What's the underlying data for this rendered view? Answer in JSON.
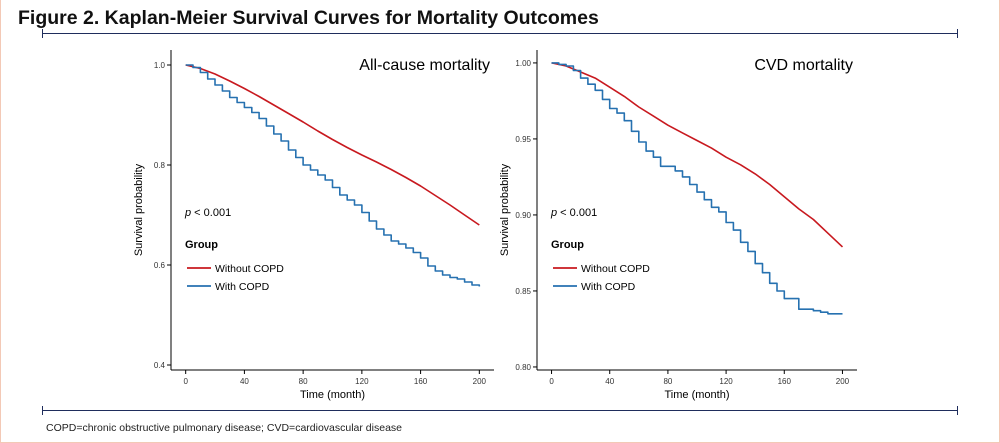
{
  "figure": {
    "title": "Figure 2. Kaplan-Meier Survival Curves for Mortality Outcomes",
    "footnote": "COPD=chronic obstructive pulmonary disease; CVD=cardiovascular disease"
  },
  "colors": {
    "without_copd": "#c8191f",
    "with_copd": "#2671b0",
    "rule": "#1f2d5c"
  },
  "chart_data": [
    {
      "type": "line",
      "title": "All-cause mortality",
      "xlabel": "Time (month)",
      "ylabel": "Survival probability",
      "xlim": [
        -10,
        210
      ],
      "ylim": [
        0.39,
        1.03
      ],
      "xticks": [
        0,
        40,
        80,
        120,
        160,
        200
      ],
      "yticks": [
        0.4,
        0.6,
        0.8,
        1.0
      ],
      "ytick_labels": [
        "0.4",
        "0.6",
        "0.8",
        "1.0"
      ],
      "annotation": "< 0.001",
      "annotation_italic": "p",
      "legend_title": "Group",
      "legend_position": "left",
      "grid": false,
      "series": [
        {
          "name": "Without COPD",
          "color": "#c8191f",
          "step": false,
          "x": [
            0,
            10,
            20,
            30,
            40,
            50,
            60,
            70,
            80,
            90,
            100,
            110,
            120,
            130,
            140,
            150,
            160,
            170,
            180,
            190,
            200
          ],
          "y": [
            1.0,
            0.993,
            0.982,
            0.968,
            0.953,
            0.937,
            0.92,
            0.903,
            0.886,
            0.868,
            0.851,
            0.835,
            0.82,
            0.806,
            0.791,
            0.775,
            0.758,
            0.739,
            0.72,
            0.7,
            0.68
          ]
        },
        {
          "name": "With COPD",
          "color": "#2671b0",
          "step": true,
          "x": [
            0,
            5,
            10,
            15,
            20,
            25,
            30,
            35,
            40,
            45,
            50,
            55,
            60,
            65,
            70,
            75,
            80,
            85,
            90,
            95,
            100,
            105,
            110,
            115,
            120,
            125,
            130,
            135,
            140,
            145,
            150,
            155,
            160,
            165,
            170,
            175,
            180,
            185,
            190,
            195,
            200
          ],
          "y": [
            1.0,
            0.995,
            0.985,
            0.972,
            0.96,
            0.948,
            0.935,
            0.925,
            0.915,
            0.905,
            0.893,
            0.878,
            0.862,
            0.848,
            0.83,
            0.815,
            0.8,
            0.79,
            0.78,
            0.77,
            0.755,
            0.74,
            0.73,
            0.72,
            0.705,
            0.688,
            0.672,
            0.66,
            0.648,
            0.642,
            0.634,
            0.625,
            0.614,
            0.598,
            0.588,
            0.58,
            0.575,
            0.572,
            0.566,
            0.56,
            0.557
          ]
        }
      ]
    },
    {
      "type": "line",
      "title": "CVD mortality",
      "xlabel": "Time (month)",
      "ylabel": "Survival probability",
      "xlim": [
        -10,
        210
      ],
      "ylim": [
        0.798,
        1.0085
      ],
      "xticks": [
        0,
        40,
        80,
        120,
        160,
        200
      ],
      "yticks": [
        0.8,
        0.85,
        0.9,
        0.95,
        1.0
      ],
      "ytick_labels": [
        "0.80",
        "0.85",
        "0.90",
        "0.95",
        "1.00"
      ],
      "annotation": "< 0.001",
      "annotation_italic": "p",
      "legend_title": "Group",
      "legend_position": "left",
      "grid": false,
      "series": [
        {
          "name": "Without COPD",
          "color": "#c8191f",
          "step": false,
          "x": [
            0,
            10,
            20,
            30,
            40,
            50,
            60,
            70,
            80,
            90,
            100,
            110,
            120,
            130,
            140,
            150,
            160,
            170,
            180,
            190,
            200
          ],
          "y": [
            1.0,
            0.998,
            0.994,
            0.99,
            0.984,
            0.978,
            0.971,
            0.965,
            0.959,
            0.954,
            0.949,
            0.944,
            0.938,
            0.933,
            0.927,
            0.92,
            0.912,
            0.904,
            0.897,
            0.888,
            0.879
          ]
        },
        {
          "name": "With COPD",
          "color": "#2671b0",
          "step": true,
          "x": [
            0,
            5,
            10,
            15,
            20,
            25,
            30,
            35,
            40,
            45,
            50,
            55,
            60,
            65,
            70,
            75,
            80,
            85,
            90,
            95,
            100,
            105,
            110,
            115,
            120,
            125,
            130,
            135,
            140,
            145,
            150,
            155,
            160,
            165,
            170,
            175,
            180,
            185,
            190,
            195,
            200
          ],
          "y": [
            1.0,
            0.999,
            0.998,
            0.995,
            0.99,
            0.986,
            0.982,
            0.976,
            0.97,
            0.967,
            0.962,
            0.955,
            0.948,
            0.942,
            0.938,
            0.932,
            0.932,
            0.929,
            0.925,
            0.92,
            0.915,
            0.91,
            0.905,
            0.902,
            0.895,
            0.89,
            0.882,
            0.876,
            0.868,
            0.862,
            0.855,
            0.85,
            0.845,
            0.845,
            0.838,
            0.838,
            0.837,
            0.836,
            0.835,
            0.835,
            0.835
          ]
        }
      ]
    }
  ]
}
